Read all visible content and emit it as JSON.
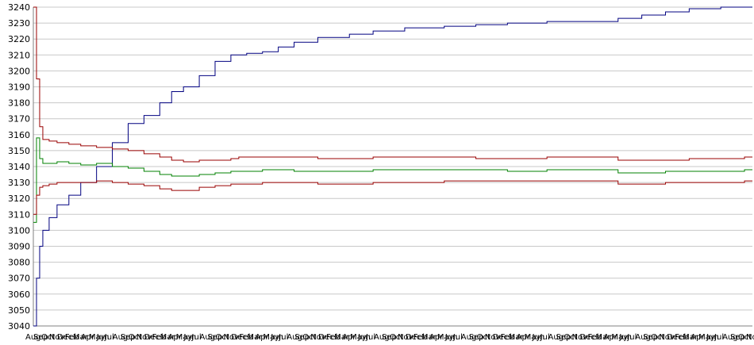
{
  "chart_data": {
    "type": "line",
    "title": "",
    "xlabel": "",
    "ylabel": "",
    "ylim": [
      3040,
      3240
    ],
    "yticks": [
      3040,
      3050,
      3060,
      3070,
      3080,
      3090,
      3100,
      3110,
      3120,
      3130,
      3140,
      3150,
      3160,
      3170,
      3180,
      3190,
      3200,
      3210,
      3220,
      3230,
      3240
    ],
    "grid": true,
    "legend": "none",
    "x_tick_labels": [
      "Aug",
      "Sep",
      "Oct",
      "Nov",
      "Dec",
      "Feb",
      "Mar",
      "Apr",
      "May",
      "Jun",
      "Jul",
      "Aug",
      "Sep",
      "Oct",
      "Nov",
      "Dec",
      "Feb",
      "Mar",
      "Apr",
      "May",
      "Jun",
      "Jul",
      "Aug",
      "Sep",
      "Oct",
      "Nov",
      "Dec",
      "Feb",
      "Mar",
      "Apr",
      "May",
      "Jun",
      "Jul",
      "Aug",
      "Sep",
      "Oct",
      "Nov",
      "Dec",
      "Feb",
      "Mar",
      "Apr",
      "May",
      "Jun",
      "Jul",
      "Aug",
      "Sep",
      "Oct",
      "Nov",
      "Dec",
      "Feb",
      "Mar",
      "Apr",
      "May",
      "Jun",
      "Jul",
      "Aug",
      "Sep",
      "Oct",
      "Nov",
      "Dec",
      "Feb",
      "Mar",
      "Apr",
      "May",
      "Jun",
      "Jul",
      "Aug",
      "Sep",
      "Oct",
      "Nov",
      "Dec",
      "Feb",
      "Mar",
      "Apr",
      "May",
      "Jun",
      "Jul",
      "Aug",
      "Sep",
      "Oct",
      "Nov",
      "Dec",
      "Feb",
      "Mar",
      "Apr",
      "May",
      "Jun",
      "Jul",
      "Aug",
      "Sep",
      "Oct",
      "Nov"
    ],
    "x": [
      0,
      4,
      8,
      12,
      20,
      30,
      45,
      60,
      80,
      100,
      120,
      140,
      160,
      175,
      190,
      210,
      230,
      250,
      260,
      270,
      290,
      310,
      330,
      360,
      400,
      430,
      470,
      520,
      560,
      600,
      650,
      700,
      740,
      770,
      800,
      830,
      870,
      900,
      910
    ],
    "series": [
      {
        "color": "#000080",
        "values": [
          3040,
          3070,
          3090,
          3100,
          3108,
          3116,
          3122,
          3130,
          3140,
          3155,
          3167,
          3172,
          3180,
          3187,
          3190,
          3197,
          3206,
          3210,
          3210,
          3211,
          3212,
          3215,
          3218,
          3221,
          3223,
          3225,
          3227,
          3228,
          3229,
          3230,
          3231,
          3231,
          3233,
          3235,
          3237,
          3239,
          3240,
          3240,
          3240
        ]
      },
      {
        "color": "#990000",
        "values": [
          3240,
          3195,
          3165,
          3157,
          3156,
          3155,
          3154,
          3153,
          3152,
          3151,
          3150,
          3148,
          3146,
          3144,
          3143,
          3144,
          3144,
          3145,
          3146,
          3146,
          3146,
          3146,
          3146,
          3145,
          3145,
          3146,
          3146,
          3146,
          3145,
          3145,
          3146,
          3146,
          3144,
          3144,
          3144,
          3145,
          3145,
          3146,
          3146
        ]
      },
      {
        "color": "#008000",
        "values": [
          3105,
          3158,
          3145,
          3142,
          3142,
          3143,
          3142,
          3141,
          3142,
          3140,
          3139,
          3137,
          3135,
          3134,
          3134,
          3135,
          3136,
          3137,
          3137,
          3137,
          3138,
          3138,
          3137,
          3137,
          3137,
          3138,
          3138,
          3138,
          3138,
          3137,
          3138,
          3138,
          3136,
          3136,
          3137,
          3137,
          3137,
          3138,
          3138
        ]
      },
      {
        "color": "#990000",
        "values": [
          3110,
          3122,
          3127,
          3128,
          3129,
          3130,
          3130,
          3130,
          3131,
          3130,
          3129,
          3128,
          3126,
          3125,
          3125,
          3127,
          3128,
          3129,
          3129,
          3129,
          3130,
          3130,
          3130,
          3129,
          3129,
          3130,
          3130,
          3131,
          3131,
          3131,
          3131,
          3131,
          3129,
          3129,
          3130,
          3130,
          3130,
          3131,
          3131
        ]
      }
    ]
  }
}
